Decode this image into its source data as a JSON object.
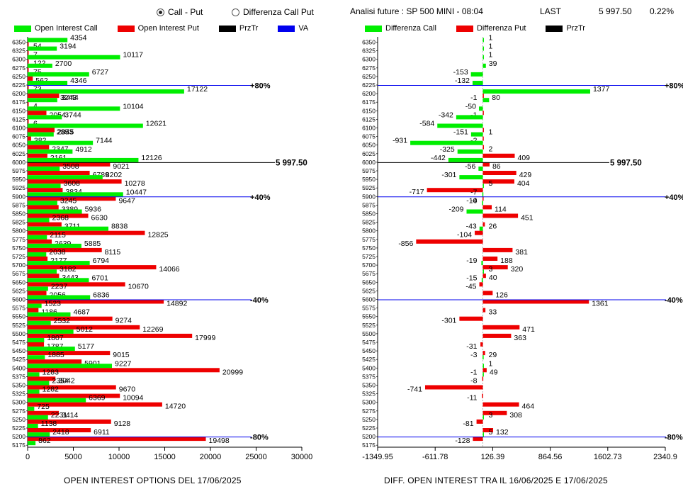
{
  "header": {
    "radio_callput": "Call - Put",
    "radio_diff": "Differenza Call Put",
    "analisi": "Analisi future : SP 500 MINI - 08:04",
    "last_label": "LAST",
    "last_value": "5 997.50",
    "last_change": "0.22%"
  },
  "legend_left": [
    {
      "label": "Open Interest Call",
      "color": "#00ee00"
    },
    {
      "label": "Open Interest Put",
      "color": "#ee0000"
    },
    {
      "label": "PrzTr",
      "color": "#000000"
    },
    {
      "label": "VA",
      "color": "#0000ee"
    }
  ],
  "legend_right": [
    {
      "label": "Differenza Call",
      "color": "#00ee00"
    },
    {
      "label": "Differenza Put",
      "color": "#ee0000"
    },
    {
      "label": "PrzTr",
      "color": "#000000"
    }
  ],
  "colors": {
    "call": "#00ee00",
    "put": "#ee0000",
    "przTr": "#000000",
    "va": "#0000ee"
  },
  "chart_data": [
    {
      "type": "bar",
      "orientation": "horizontal",
      "title": "OPEN INTEREST OPTIONS DEL 17/06/2025",
      "strikes": [
        "6350",
        "6325",
        "6300",
        "6275",
        "6250",
        "6225",
        "6200",
        "6175",
        "6150",
        "6125",
        "6100",
        "6075",
        "6050",
        "6025",
        "6000",
        "5975",
        "5950",
        "5925",
        "5900",
        "5875",
        "5850",
        "5825",
        "5800",
        "5775",
        "5750",
        "5725",
        "5700",
        "5675",
        "5650",
        "5625",
        "5600",
        "5575",
        "5550",
        "5525",
        "5500",
        "5475",
        "5450",
        "5425",
        "5400",
        "5375",
        "5350",
        "5325",
        "5300",
        "5275",
        "5250",
        "5225",
        "5200",
        "5175"
      ],
      "series": [
        {
          "name": "Open Interest Call",
          "values": [
            4354,
            3194,
            10117,
            2700,
            6727,
            4346,
            17122,
            3243,
            10104,
            3744,
            12621,
            2853,
            7144,
            4912,
            12126,
            3508,
            8202,
            3608,
            10447,
            3245,
            5936,
            2368,
            8838,
            2115,
            5885,
            2038,
            6794,
            3182,
            6701,
            2237,
            6836,
            1523,
            4687,
            2532,
            5012,
            1807,
            5177,
            1885,
            9227,
            1283,
            2354,
            1282,
            6369,
            725,
            2231,
            1138,
            2418,
            862
          ]
        },
        {
          "name": "Open Interest Put",
          "values": [
            54,
            7,
            122,
            75,
            562,
            73,
            3444,
            4,
            2054,
            6,
            2945,
            382,
            2347,
            2161,
            9021,
            6789,
            10278,
            3834,
            9647,
            3389,
            6630,
            3711,
            12825,
            2639,
            8115,
            2177,
            14066,
            3443,
            10670,
            2056,
            14892,
            1186,
            9274,
            12269,
            17999,
            1787,
            9015,
            5901,
            20999,
            3042,
            9670,
            10094,
            14720,
            3414,
            9128,
            6911,
            19498,
            0
          ]
        }
      ],
      "xticks": [
        "0",
        "5000",
        "10000",
        "15000",
        "20000",
        "25000",
        "30000"
      ],
      "xlim": [
        0,
        30000
      ],
      "przTr": {
        "value": "5 997.50",
        "strike": "6000"
      },
      "va_lines": [
        {
          "strike": "6225",
          "label": "+80%"
        },
        {
          "strike": "5900",
          "label": "+40%"
        },
        {
          "strike": "5600",
          "label": "-40%"
        },
        {
          "strike": "5200",
          "label": "-80%"
        }
      ]
    },
    {
      "type": "bar",
      "orientation": "horizontal",
      "title": "DIFF. OPEN INTEREST TRA IL 16/06/2025 E 17/06/2025",
      "strikes": [
        "6350",
        "6325",
        "6300",
        "6275",
        "6250",
        "6225",
        "6200",
        "6175",
        "6150",
        "6125",
        "6100",
        "6075",
        "6050",
        "6025",
        "6000",
        "5975",
        "5950",
        "5925",
        "5900",
        "5875",
        "5850",
        "5825",
        "5800",
        "5775",
        "5750",
        "5725",
        "5700",
        "5675",
        "5650",
        "5625",
        "5600",
        "5575",
        "5550",
        "5525",
        "5500",
        "5475",
        "5450",
        "5425",
        "5400",
        "5375",
        "5350",
        "5325",
        "5300",
        "5275",
        "5250",
        "5225",
        "5200",
        "5175"
      ],
      "series": [
        {
          "name": "Differenza Call",
          "values": [
            1,
            1,
            1,
            39,
            -153,
            -132,
            1377,
            80,
            -50,
            -342,
            -584,
            -151,
            -931,
            -325,
            -442,
            -56,
            -301,
            5,
            -7,
            -10,
            -209,
            null,
            -43,
            null,
            null,
            null,
            -19,
            3,
            -15,
            null,
            null,
            null,
            null,
            null,
            null,
            null,
            null,
            -3,
            1,
            -1,
            null,
            null,
            null,
            null,
            3,
            null,
            5,
            null
          ]
        },
        {
          "name": "Differenza Put",
          "values": [
            null,
            null,
            null,
            null,
            null,
            null,
            -1,
            null,
            -1,
            null,
            1,
            -2,
            2,
            409,
            86,
            429,
            404,
            -717,
            -4,
            114,
            451,
            26,
            -104,
            -856,
            381,
            188,
            320,
            40,
            -45,
            126,
            1361,
            33,
            -301,
            471,
            363,
            -31,
            29,
            null,
            49,
            -8,
            -741,
            -11,
            464,
            308,
            -81,
            132,
            -128,
            null
          ]
        }
      ],
      "xticks": [
        "-1349.95",
        "-611.78",
        "126.39",
        "864.56",
        "1602.73",
        "2340.9"
      ],
      "xlim": [
        -1349.95,
        2340.9
      ],
      "przTr": {
        "value": "5 997.50",
        "strike": "6000"
      },
      "va_lines": [
        {
          "strike": "6225",
          "label": "+80%"
        },
        {
          "strike": "5900",
          "label": "+40%"
        },
        {
          "strike": "5600",
          "label": "-40%"
        },
        {
          "strike": "5200",
          "label": "-80%"
        }
      ]
    }
  ]
}
